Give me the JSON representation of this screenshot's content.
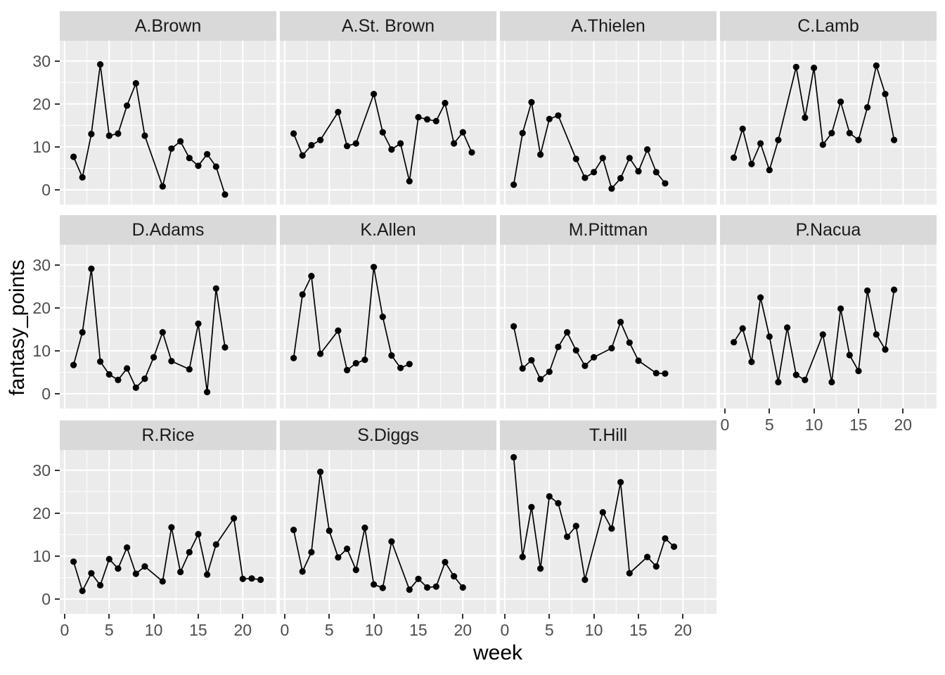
{
  "chart_data": {
    "type": "line",
    "title": "",
    "xlabel": "week",
    "ylabel": "fantasy_points",
    "x_ticks": [
      0,
      5,
      10,
      15,
      20
    ],
    "x_minor": [
      2.5,
      7.5,
      12.5,
      17.5,
      22.5
    ],
    "y_ticks": [
      0,
      10,
      20,
      30
    ],
    "y_minor": [
      5,
      15,
      25
    ],
    "x_domain": [
      -0.55,
      23.8
    ],
    "y_domain": [
      -3.4,
      34.7
    ],
    "grid": true,
    "legend": "none",
    "facets": [
      {
        "name": "A.Brown",
        "weeks": [
          1,
          2,
          3,
          4,
          5,
          6,
          7,
          8,
          9,
          11,
          12,
          13,
          14,
          15,
          16,
          17,
          18
        ],
        "values": [
          7.7,
          2.9,
          13.0,
          29.2,
          12.6,
          13.1,
          19.6,
          24.8,
          12.6,
          0.8,
          9.6,
          11.3,
          7.4,
          5.6,
          8.3,
          5.4,
          -1.1
        ]
      },
      {
        "name": "A.St. Brown",
        "weeks": [
          1,
          2,
          3,
          4,
          6,
          7,
          8,
          10,
          11,
          12,
          13,
          14,
          15,
          16,
          17,
          18,
          19,
          20,
          21
        ],
        "values": [
          13.1,
          8.0,
          10.4,
          11.6,
          18.1,
          10.2,
          10.8,
          22.3,
          13.4,
          9.4,
          10.8,
          2.0,
          16.9,
          16.4,
          16.0,
          20.2,
          10.8,
          13.4,
          8.7
        ]
      },
      {
        "name": "A.Thielen",
        "weeks": [
          1,
          2,
          3,
          4,
          5,
          6,
          8,
          9,
          10,
          11,
          12,
          13,
          14,
          15,
          16,
          17,
          18
        ],
        "values": [
          1.2,
          13.2,
          20.4,
          8.2,
          16.5,
          17.3,
          7.2,
          2.8,
          4.1,
          7.4,
          0.3,
          2.7,
          7.4,
          4.3,
          9.4,
          4.1,
          1.5
        ]
      },
      {
        "name": "C.Lamb",
        "weeks": [
          1,
          2,
          3,
          4,
          5,
          6,
          8,
          9,
          10,
          11,
          12,
          13,
          14,
          15,
          16,
          17,
          18,
          19
        ],
        "values": [
          7.5,
          14.2,
          6.0,
          10.8,
          4.6,
          11.6,
          28.6,
          16.8,
          28.4,
          10.5,
          13.2,
          20.5,
          13.2,
          11.6,
          19.2,
          28.9,
          22.3,
          11.6
        ]
      },
      {
        "name": "D.Adams",
        "weeks": [
          1,
          2,
          3,
          4,
          5,
          6,
          7,
          8,
          9,
          10,
          11,
          12,
          14,
          15,
          16,
          17,
          18
        ],
        "values": [
          6.7,
          14.3,
          29.1,
          7.5,
          4.5,
          3.2,
          5.9,
          1.4,
          3.5,
          8.5,
          14.3,
          7.6,
          5.7,
          16.3,
          0.4,
          24.5,
          10.8
        ]
      },
      {
        "name": "K.Allen",
        "weeks": [
          1,
          2,
          3,
          4,
          6,
          7,
          8,
          9,
          10,
          11,
          12,
          13,
          14
        ],
        "values": [
          8.3,
          23.1,
          27.4,
          9.3,
          14.7,
          5.5,
          7.1,
          7.9,
          29.5,
          17.9,
          8.9,
          6.0,
          6.9
        ]
      },
      {
        "name": "M.Pittman",
        "weeks": [
          1,
          2,
          3,
          4,
          5,
          6,
          7,
          8,
          9,
          10,
          12,
          13,
          14,
          15,
          17,
          18
        ],
        "values": [
          15.7,
          5.9,
          7.8,
          3.4,
          5.1,
          10.9,
          14.3,
          10.1,
          6.5,
          8.5,
          10.6,
          16.7,
          11.9,
          7.7,
          4.8,
          4.7
        ]
      },
      {
        "name": "P.Nacua",
        "weeks": [
          1,
          2,
          3,
          4,
          5,
          6,
          7,
          8,
          9,
          11,
          12,
          13,
          14,
          15,
          16,
          17,
          18,
          19
        ],
        "values": [
          12.0,
          15.2,
          7.4,
          22.4,
          13.3,
          2.7,
          15.4,
          4.4,
          3.2,
          13.8,
          2.7,
          19.8,
          9.0,
          5.3,
          24.0,
          13.8,
          10.3,
          24.2
        ]
      },
      {
        "name": "R.Rice",
        "weeks": [
          1,
          2,
          3,
          4,
          5,
          6,
          7,
          8,
          9,
          11,
          12,
          13,
          14,
          15,
          16,
          17,
          19,
          20,
          21,
          22
        ],
        "values": [
          8.7,
          1.9,
          6.0,
          3.2,
          9.3,
          7.1,
          12.0,
          5.9,
          7.6,
          4.1,
          16.7,
          6.3,
          10.9,
          15.1,
          5.7,
          12.7,
          18.8,
          4.7,
          4.8,
          4.5
        ]
      },
      {
        "name": "S.Diggs",
        "weeks": [
          1,
          2,
          3,
          4,
          5,
          6,
          7,
          8,
          9,
          10,
          11,
          12,
          14,
          15,
          16,
          17,
          18,
          19,
          20
        ],
        "values": [
          16.1,
          6.4,
          10.9,
          29.6,
          15.9,
          9.7,
          11.7,
          6.8,
          16.6,
          3.4,
          2.6,
          13.4,
          2.2,
          4.7,
          2.7,
          2.9,
          8.6,
          5.3,
          2.7
        ]
      },
      {
        "name": "T.Hill",
        "weeks": [
          1,
          2,
          3,
          4,
          5,
          6,
          7,
          8,
          9,
          11,
          12,
          13,
          14,
          16,
          17,
          18,
          19
        ],
        "values": [
          33.0,
          9.8,
          21.4,
          7.1,
          23.9,
          22.3,
          14.5,
          17.0,
          4.5,
          20.2,
          16.4,
          27.2,
          6.0,
          9.8,
          7.6,
          14.1,
          12.2
        ]
      }
    ]
  },
  "style": {
    "panel_bg": "#EBEBEB",
    "strip_bg": "#D9D9D9",
    "strip_text_color": "#1A1A1A",
    "grid_color": "#FFFFFF",
    "tick_label_color": "#4D4D4D",
    "tick_mark_color": "#333333",
    "point_color": "#000000",
    "line_color": "#000000"
  }
}
